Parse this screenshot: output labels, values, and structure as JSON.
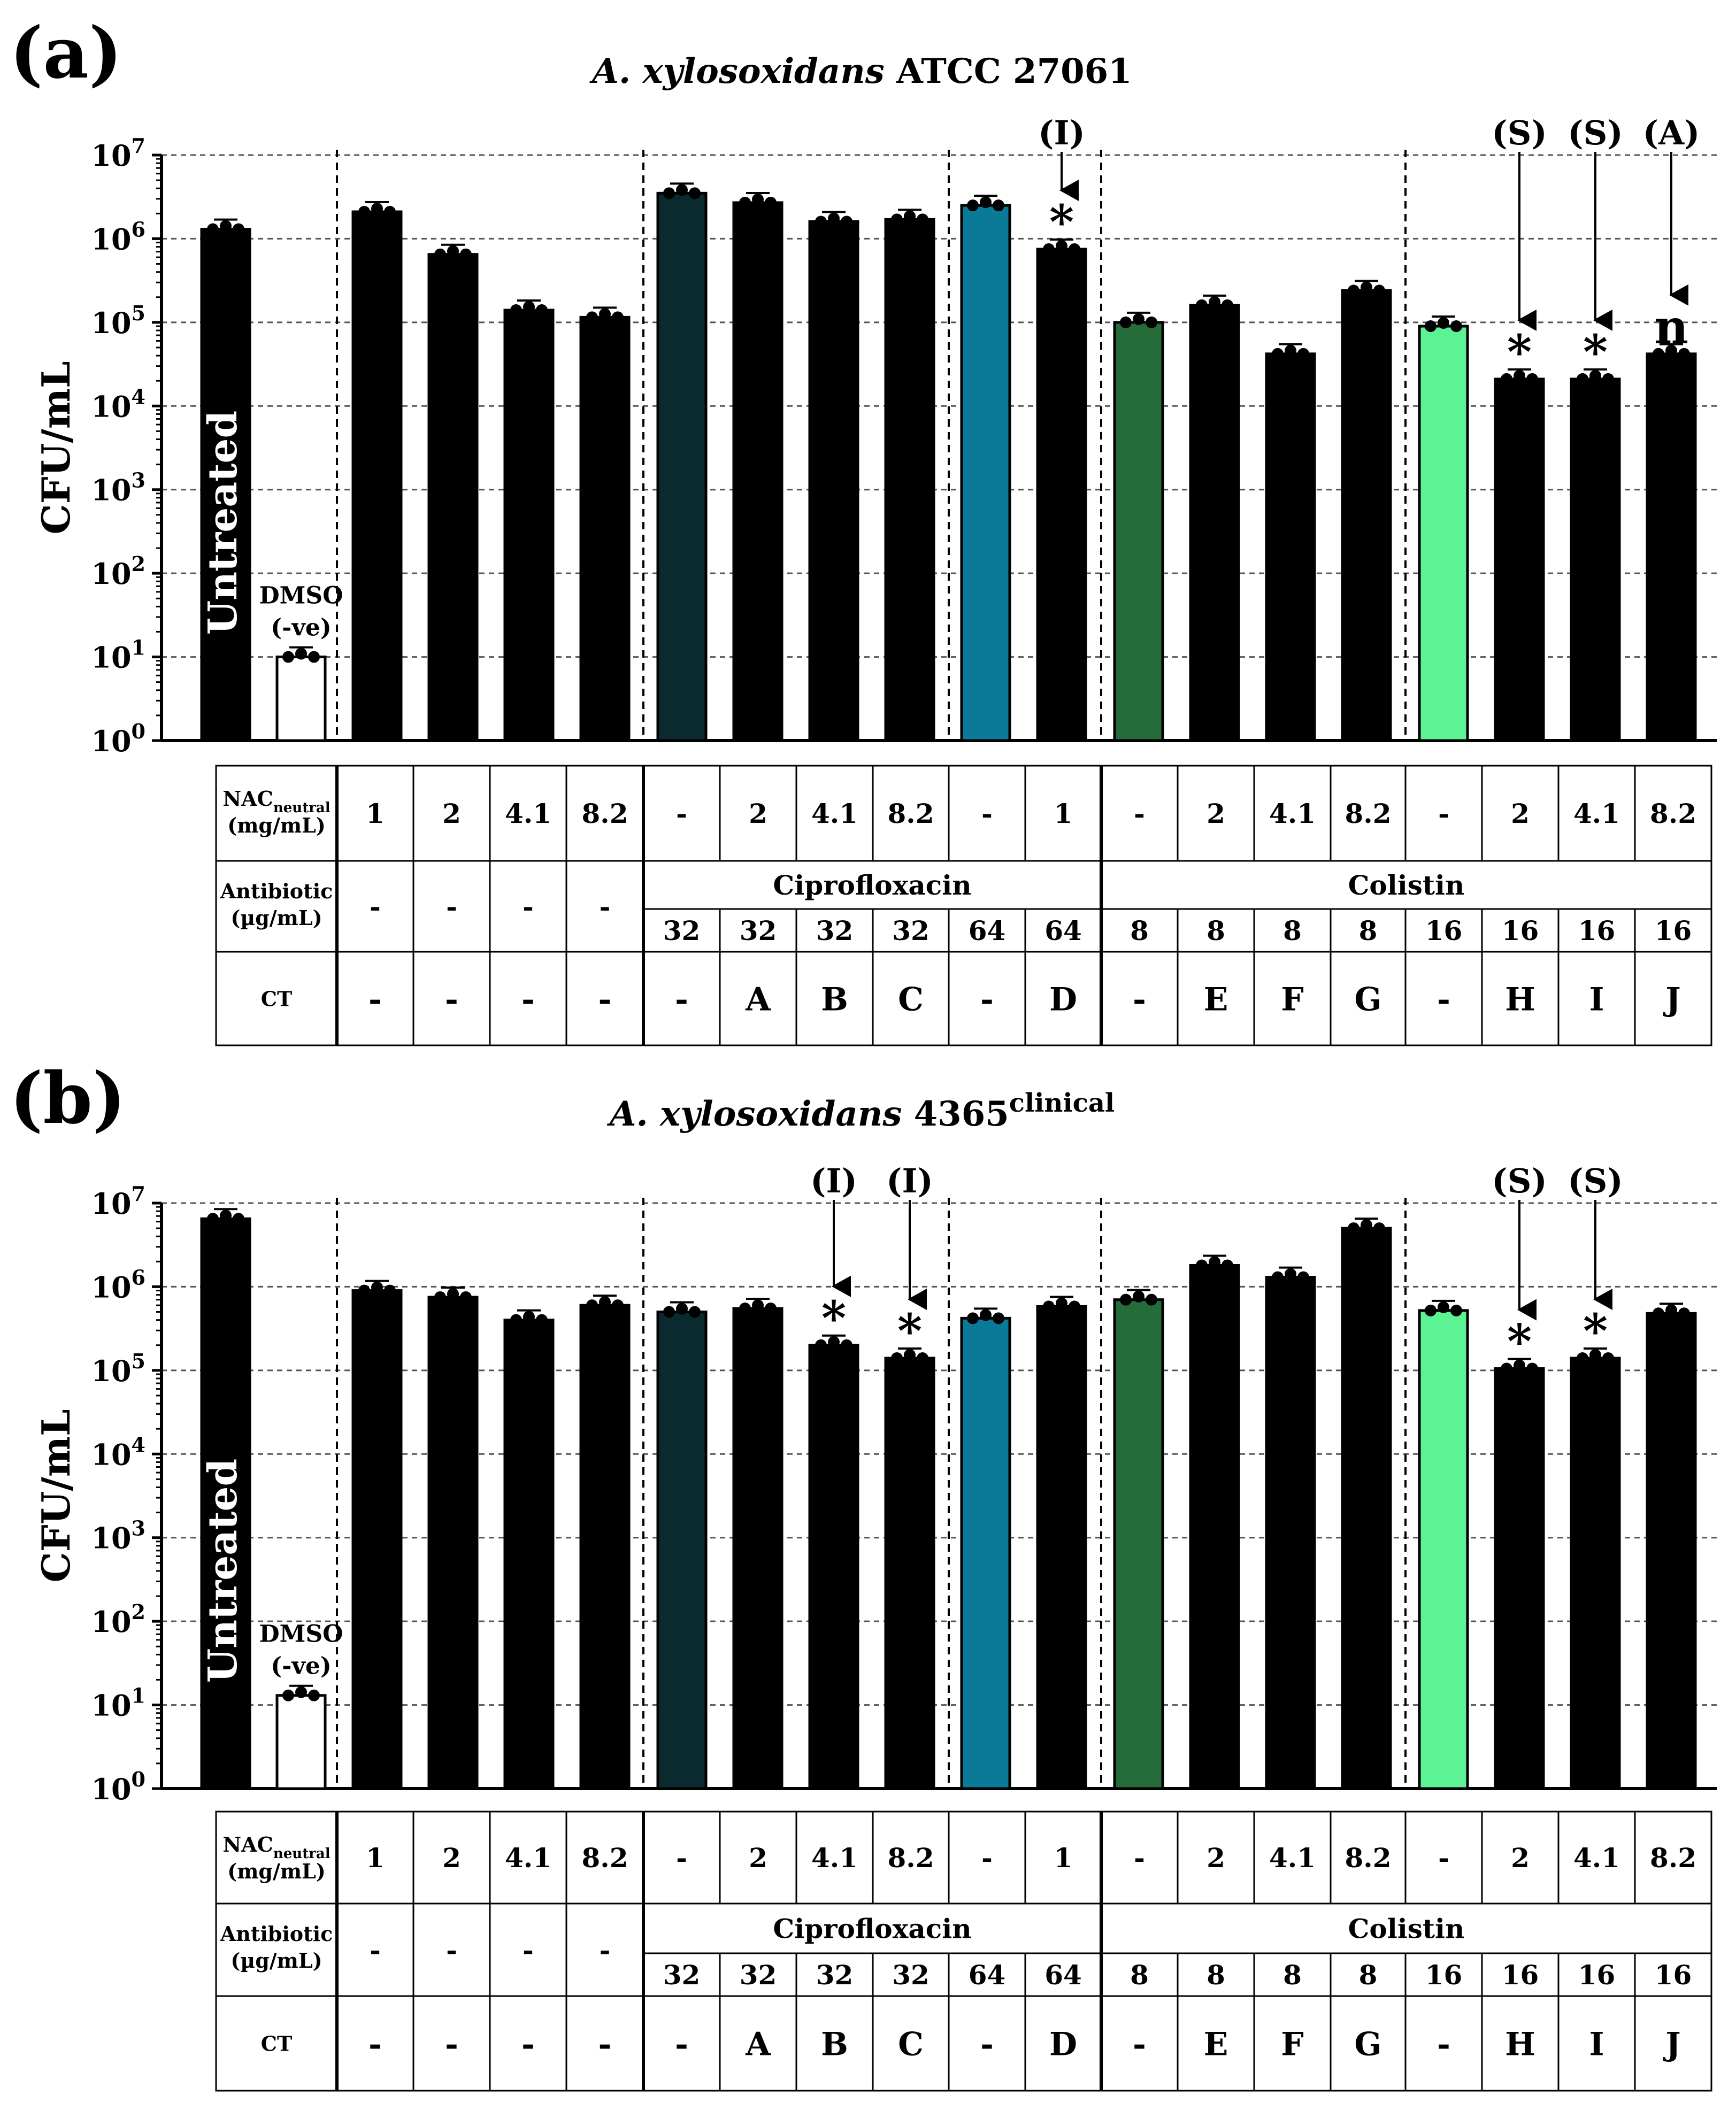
{
  "panels": [
    {
      "letter": "(a)",
      "title_italic": "A. xylosoxidans",
      "title_rest": " ATCC 27061",
      "title_sup": "",
      "ylabel": "CFU/mL",
      "untreated_label": "Untreated",
      "dmso_label": [
        "DMSO",
        "(-ve)"
      ]
    },
    {
      "letter": "(b)",
      "title_italic": "A. xylosoxidans",
      "title_rest": " 4365",
      "title_sup": "clinical",
      "ylabel": "CFU/mL",
      "untreated_label": "Untreated",
      "dmso_label": [
        "DMSO",
        "(-ve)"
      ]
    }
  ],
  "y_ticks": [
    "10^0",
    "10^1",
    "10^2",
    "10^3",
    "10^4",
    "10^5",
    "10^6",
    "10^7"
  ],
  "table": {
    "nac_label_main": "NAC",
    "nac_label_sub": "neutral",
    "nac_unit": "(mg/mL)",
    "antibiotic_label": "Antibiotic",
    "antibiotic_unit": "(µg/mL)",
    "ct_label": "CT",
    "nac_values": [
      "1",
      "2",
      "4.1",
      "8.2",
      "-",
      "2",
      "4.1",
      "8.2",
      "-",
      "1",
      "-",
      "2",
      "4.1",
      "8.2",
      "-",
      "2",
      "4.1",
      "8.2"
    ],
    "antibiotic_values": [
      "-",
      "-",
      "-",
      "-",
      "32",
      "32",
      "32",
      "32",
      "64",
      "64",
      "8",
      "8",
      "8",
      "8",
      "16",
      "16",
      "16",
      "16"
    ],
    "ct_values": [
      "-",
      "-",
      "-",
      "-",
      "-",
      "A",
      "B",
      "C",
      "-",
      "D",
      "-",
      "E",
      "F",
      "G",
      "-",
      "H",
      "I",
      "J"
    ],
    "group_cipro": "Ciprofloxacin",
    "group_colistin": "Colistin"
  },
  "colors": {
    "untreated": "#000000",
    "dmso": "#ffffff",
    "nac": "#77726f",
    "nac_light": "#d0d0d0",
    "cipro32": "#0a2a30",
    "cipro64": "#0b7a98",
    "col8": "#266c3a",
    "col16": "#5cf394"
  },
  "chart_data": [
    {
      "type": "bar",
      "title": "A. xylosoxidans ATCC 27061",
      "ylabel": "CFU/mL",
      "yscale": "log10",
      "ylim": [
        1,
        10000000
      ],
      "categories": [
        "Untreated",
        "DMSO (-ve)",
        "NAC 1",
        "NAC 2",
        "NAC 4.1",
        "NAC 8.2",
        "Cip32",
        "A",
        "B",
        "C",
        "Cip64",
        "D",
        "Col8",
        "E",
        "F",
        "G",
        "Col16",
        "H",
        "I",
        "J"
      ],
      "values": [
        1300000,
        10,
        2100000,
        650000,
        140000,
        115000,
        3500000,
        2700000,
        1600000,
        1700000,
        2500000,
        750000,
        100000,
        160000,
        42000,
        240000,
        90000,
        21000,
        21000,
        42000
      ],
      "annotations": [
        {
          "bar": "D",
          "label": "(I)",
          "star": "*"
        },
        {
          "bar": "H",
          "label": "(S)",
          "star": "*"
        },
        {
          "bar": "I",
          "label": "(S)",
          "star": "*"
        },
        {
          "bar": "J",
          "label": "(A)",
          "star": "n"
        }
      ]
    },
    {
      "type": "bar",
      "title": "A. xylosoxidans 4365 clinical",
      "ylabel": "CFU/mL",
      "yscale": "log10",
      "ylim": [
        1,
        10000000
      ],
      "categories": [
        "Untreated",
        "DMSO (-ve)",
        "NAC 1",
        "NAC 2",
        "NAC 4.1",
        "NAC 8.2",
        "Cip32",
        "A",
        "B",
        "C",
        "Cip64",
        "D",
        "Col8",
        "E",
        "F",
        "G",
        "Col16",
        "H",
        "I",
        "J"
      ],
      "values": [
        6500000,
        13,
        900000,
        750000,
        400000,
        600000,
        500000,
        550000,
        200000,
        140000,
        420000,
        580000,
        700000,
        1800000,
        1300000,
        5000000,
        520000,
        105000,
        140000,
        480000
      ],
      "annotations": [
        {
          "bar": "B",
          "label": "(I)",
          "star": "*"
        },
        {
          "bar": "C",
          "label": "(I)",
          "star": "*"
        },
        {
          "bar": "H",
          "label": "(S)",
          "star": "*"
        },
        {
          "bar": "I",
          "label": "(S)",
          "star": "*"
        }
      ]
    }
  ]
}
